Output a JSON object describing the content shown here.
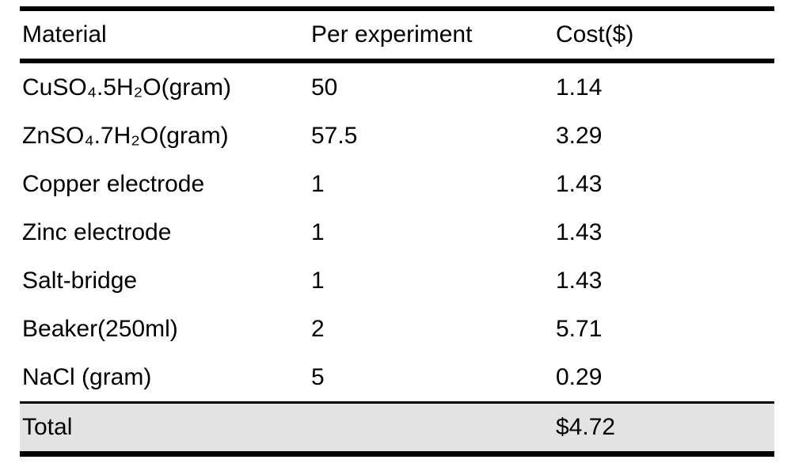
{
  "table": {
    "columns": [
      {
        "key": "material",
        "label": "Material"
      },
      {
        "key": "per_experiment",
        "label": "Per experiment"
      },
      {
        "key": "cost",
        "label": "Cost($)"
      }
    ],
    "rows": [
      {
        "material": "CuSO₄.5H₂O(gram)",
        "per_experiment": "50",
        "cost": "1.14"
      },
      {
        "material": "ZnSO₄.7H₂O(gram)",
        "per_experiment": "57.5",
        "cost": "3.29"
      },
      {
        "material": "Copper electrode",
        "per_experiment": "1",
        "cost": "1.43"
      },
      {
        "material": "Zinc electrode",
        "per_experiment": "1",
        "cost": "1.43"
      },
      {
        "material": "Salt-bridge",
        "per_experiment": "1",
        "cost": "1.43"
      },
      {
        "material": "Beaker(250ml)",
        "per_experiment": "2",
        "cost": "5.71"
      },
      {
        "material": "NaCl (gram)",
        "per_experiment": "5",
        "cost": "0.29"
      }
    ],
    "total_row": {
      "label": "Total",
      "per_experiment": "",
      "cost": "$4.72"
    },
    "colors": {
      "total_row_background": "#e3e3e3",
      "rule_color": "#000000",
      "text_color": "#000000",
      "page_background": "#ffffff"
    }
  }
}
